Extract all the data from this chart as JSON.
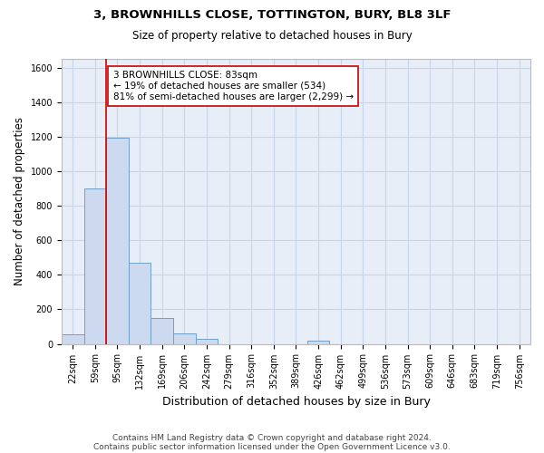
{
  "title_line1": "3, BROWNHILLS CLOSE, TOTTINGTON, BURY, BL8 3LF",
  "title_line2": "Size of property relative to detached houses in Bury",
  "xlabel": "Distribution of detached houses by size in Bury",
  "ylabel": "Number of detached properties",
  "categories": [
    "22sqm",
    "59sqm",
    "95sqm",
    "132sqm",
    "169sqm",
    "206sqm",
    "242sqm",
    "279sqm",
    "316sqm",
    "352sqm",
    "389sqm",
    "426sqm",
    "462sqm",
    "499sqm",
    "536sqm",
    "573sqm",
    "609sqm",
    "646sqm",
    "683sqm",
    "719sqm",
    "756sqm"
  ],
  "values": [
    55,
    900,
    1195,
    470,
    150,
    60,
    30,
    0,
    0,
    0,
    0,
    20,
    0,
    0,
    0,
    0,
    0,
    0,
    0,
    0,
    0
  ],
  "bar_color": "#cdd9ee",
  "bar_edge_color": "#6fa0c8",
  "grid_color": "#c8d4e8",
  "background_color": "#e8eef8",
  "vline_x": 1.5,
  "vline_color": "#cc0000",
  "annotation_line1": "3 BROWNHILLS CLOSE: 83sqm",
  "annotation_line2": "← 19% of detached houses are smaller (534)",
  "annotation_line3": "81% of semi-detached houses are larger (2,299) →",
  "annotation_box_color": "#cc0000",
  "annotation_box_facecolor": "white",
  "ylim": [
    0,
    1650
  ],
  "yticks": [
    0,
    200,
    400,
    600,
    800,
    1000,
    1200,
    1400,
    1600
  ],
  "footer_line1": "Contains HM Land Registry data © Crown copyright and database right 2024.",
  "footer_line2": "Contains public sector information licensed under the Open Government Licence v3.0.",
  "title_fontsize": 9.5,
  "subtitle_fontsize": 8.5,
  "axis_label_fontsize": 8.5,
  "tick_fontsize": 7,
  "annotation_fontsize": 7.5,
  "footer_fontsize": 6.5
}
